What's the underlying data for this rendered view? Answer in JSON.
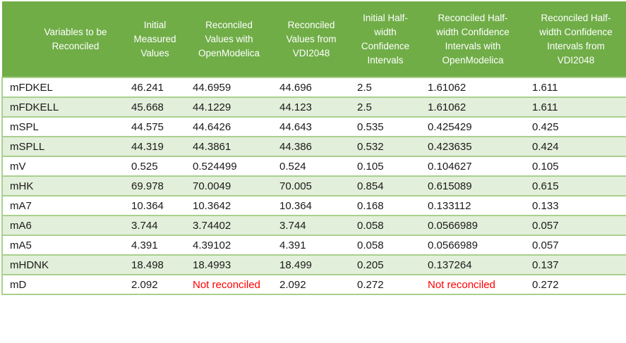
{
  "colors": {
    "header_bg": "#70AD47",
    "header_text": "#FFFFFF",
    "row_bg": "#FFFFFF",
    "row_alt_bg": "#E2EFDA",
    "border": "#A9D08E",
    "text": "#1A1A1A",
    "not_reconciled_text": "#FF0000"
  },
  "table": {
    "columns": [
      "Variables to be\nReconciled",
      "Initial\nMeasured\nValues",
      "Reconciled\nValues with\nOpenModelica",
      "Reconciled\nValues from\nVDI2048",
      "Initial Half-\nwidth\nConfidence\nIntervals",
      "Reconciled Half-\nwidth Confidence\nIntervals with\nOpenModelica",
      "Reconciled Half-\nwidth Confidence\nIntervals from\nVDI2048"
    ],
    "not_reconciled_label": "Not reconciled",
    "rows": [
      {
        "variable": "mFDKEL",
        "values": [
          "46.241",
          "44.6959",
          "44.696",
          "2.5",
          "1.61062",
          "1.611"
        ]
      },
      {
        "variable": "mFDKELL",
        "values": [
          "45.668",
          "44.1229",
          "44.123",
          "2.5",
          "1.61062",
          "1.611"
        ]
      },
      {
        "variable": "mSPL",
        "values": [
          "44.575",
          "44.6426",
          "44.643",
          "0.535",
          "0.425429",
          "0.425"
        ]
      },
      {
        "variable": "mSPLL",
        "values": [
          "44.319",
          "44.3861",
          "44.386",
          "0.532",
          "0.423635",
          "0.424"
        ]
      },
      {
        "variable": "mV",
        "values": [
          "0.525",
          "0.524499",
          "0.524",
          "0.105",
          "0.104627",
          "0.105"
        ]
      },
      {
        "variable": "mHK",
        "values": [
          "69.978",
          "70.0049",
          "70.005",
          "0.854",
          "0.615089",
          "0.615"
        ]
      },
      {
        "variable": "mA7",
        "values": [
          "10.364",
          "10.3642",
          "10.364",
          "0.168",
          "0.133112",
          "0.133"
        ]
      },
      {
        "variable": "mA6",
        "values": [
          "3.744",
          "3.74402",
          "3.744",
          "0.058",
          "0.0566989",
          "0.057"
        ]
      },
      {
        "variable": "mA5",
        "values": [
          "4.391",
          "4.39102",
          "4.391",
          "0.058",
          "0.0566989",
          "0.057"
        ]
      },
      {
        "variable": "mHDNK",
        "values": [
          "18.498",
          "18.4993",
          "18.499",
          "0.205",
          "0.137264",
          "0.137"
        ]
      },
      {
        "variable": "mD",
        "values": [
          "2.092",
          "Not reconciled",
          "2.092",
          "0.272",
          "Not reconciled",
          "0.272"
        ]
      }
    ]
  }
}
